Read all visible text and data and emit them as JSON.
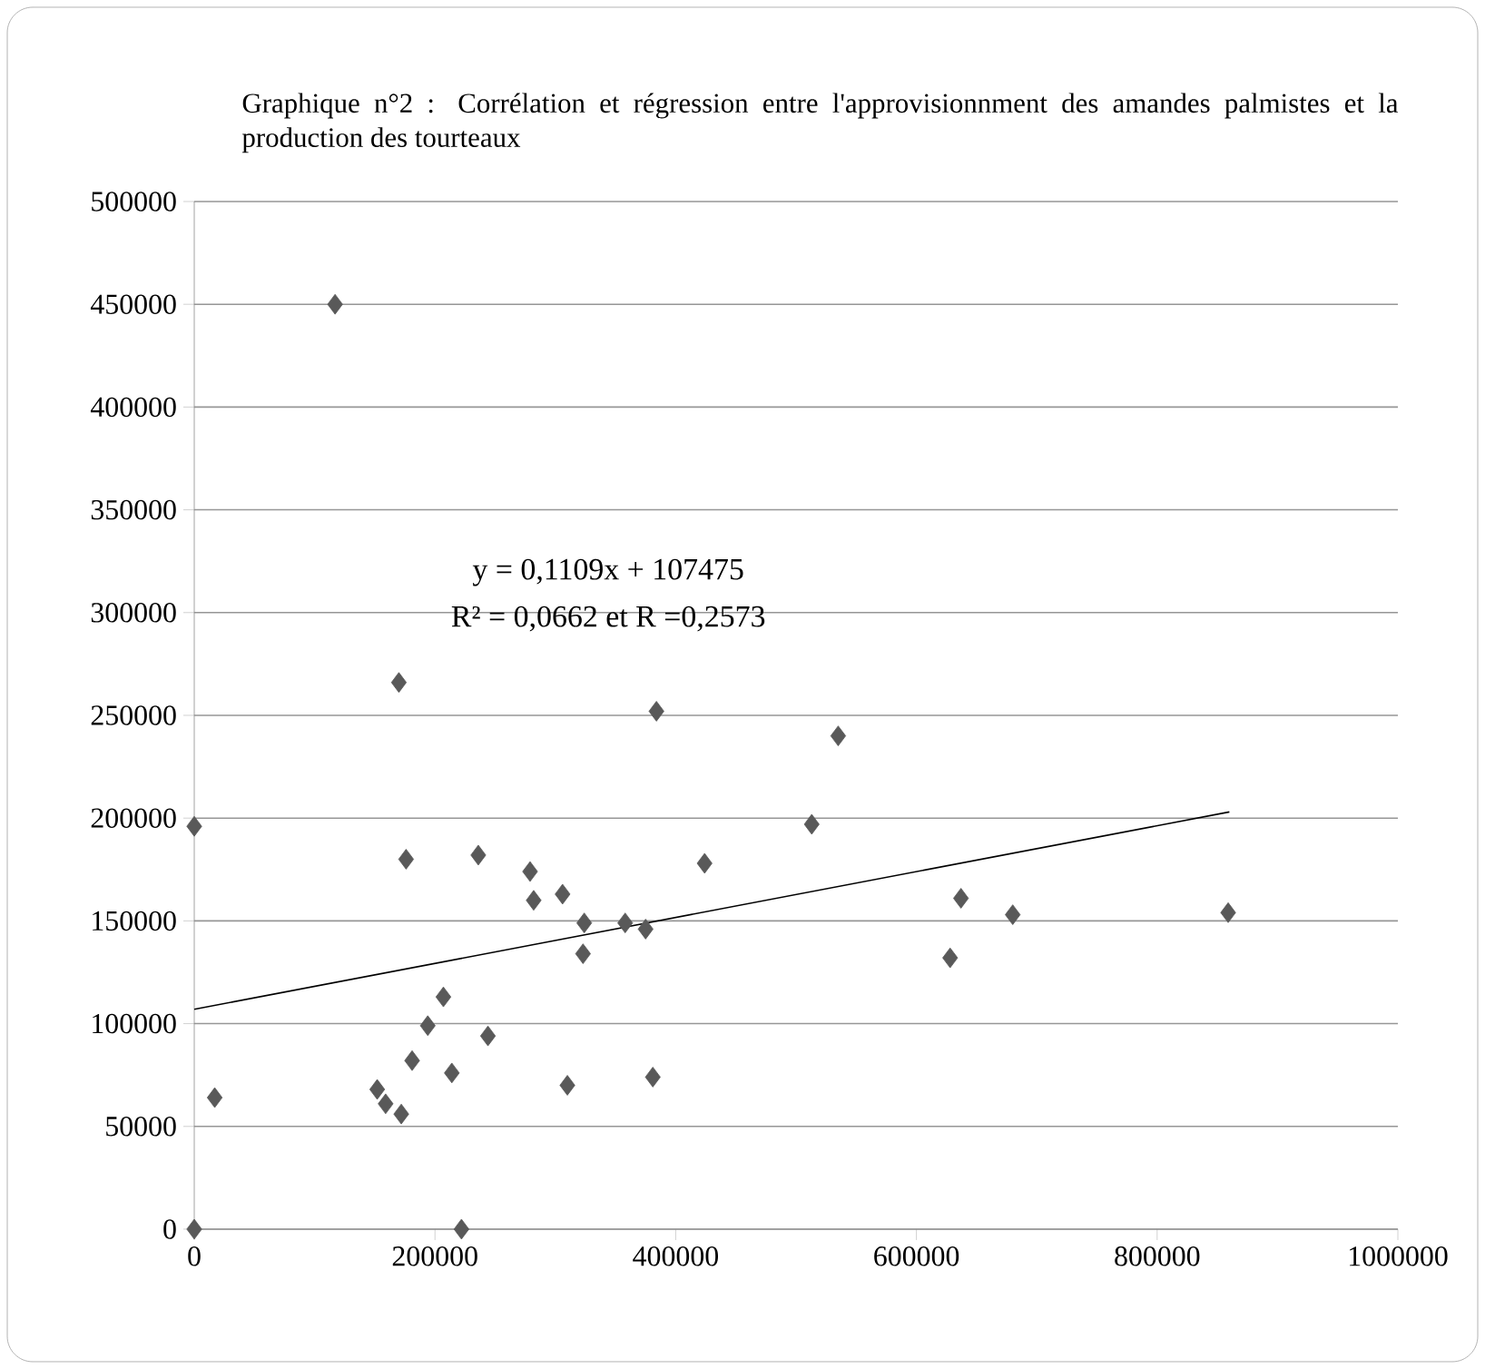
{
  "chart_data": {
    "type": "scatter",
    "title": "Graphique n°2 : Corrélation et régression entre l'approvisionnment des amandes palmistes et la production des tourteaux",
    "annotations": [
      "y = 0,1109x + 107475",
      "R² = 0,0662  et R =0,2573"
    ],
    "xlim": [
      0,
      1000000
    ],
    "ylim": [
      0,
      500000
    ],
    "xticks": [
      0,
      200000,
      400000,
      600000,
      800000,
      1000000
    ],
    "yticks": [
      0,
      50000,
      100000,
      150000,
      200000,
      250000,
      300000,
      350000,
      400000,
      450000,
      500000
    ],
    "grid": "y",
    "marker": "diamond",
    "series": [
      {
        "color": "#595959",
        "x": [
          0,
          0,
          17000,
          117000,
          152000,
          159000,
          170000,
          172000,
          176000,
          181000,
          194000,
          207000,
          214000,
          222000,
          236000,
          244000,
          279000,
          282000,
          306000,
          310000,
          323000,
          324000,
          358000,
          375000,
          381000,
          384000,
          424000,
          513000,
          535000,
          628000,
          637000,
          680000,
          859000
        ],
        "values": [
          0,
          196000,
          64000,
          450000,
          68000,
          61000,
          266000,
          56000,
          180000,
          82000,
          99000,
          113000,
          76000,
          0,
          182000,
          94000,
          174000,
          160000,
          163000,
          70000,
          134000,
          149000,
          149000,
          146000,
          74000,
          252000,
          178000,
          197000,
          240000,
          132000,
          161000,
          153000,
          154000
        ]
      },
      {
        "type": "line",
        "color": "#000000",
        "marker": "none",
        "x": [
          0,
          860000
        ],
        "values": [
          107000,
          203000
        ]
      }
    ]
  }
}
